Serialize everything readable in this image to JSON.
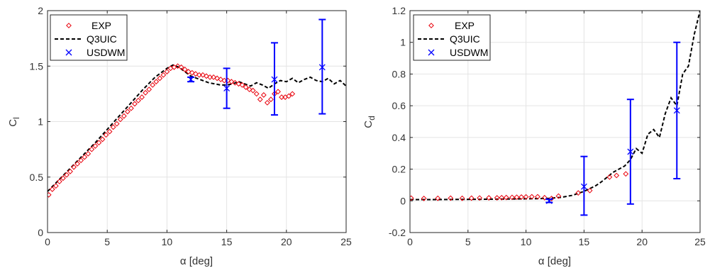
{
  "chart_data": [
    {
      "type": "line",
      "xlabel": "α [deg]",
      "ylabel": "C",
      "ylabel_subscript": "l",
      "xlim": [
        0,
        25
      ],
      "ylim": [
        0,
        2
      ],
      "xticks": [
        0,
        5,
        10,
        15,
        20,
        25
      ],
      "yticks": [
        0,
        0.5,
        1,
        1.5,
        2
      ],
      "xtick_labels": [
        "0",
        "5",
        "10",
        "15",
        "20",
        "25"
      ],
      "ytick_labels": [
        "0",
        "0.5",
        "1",
        "1.5",
        "2"
      ],
      "grid": true,
      "legend": "top-left",
      "legend_entries": [
        "EXP",
        "Q3UIC",
        "USDWM"
      ],
      "colors": {
        "exp": "#e8000b",
        "q3uic": "#000000",
        "usdwm": "#0000ff"
      },
      "series": [
        {
          "name": "EXP",
          "style": "red-diamond-markers",
          "x": [
            0.1,
            0.4,
            0.7,
            1.0,
            1.3,
            1.6,
            1.9,
            2.2,
            2.5,
            2.8,
            3.1,
            3.4,
            3.7,
            4.0,
            4.3,
            4.6,
            4.9,
            5.2,
            5.5,
            5.8,
            6.1,
            6.4,
            6.7,
            7.0,
            7.3,
            7.6,
            7.9,
            8.2,
            8.5,
            8.8,
            9.1,
            9.4,
            9.7,
            10.0,
            10.3,
            10.6,
            10.9,
            11.2,
            11.5,
            11.8,
            12.1,
            12.4,
            12.7,
            13.0,
            13.3,
            13.6,
            13.9,
            14.2,
            14.5,
            14.8,
            15.1,
            15.4,
            15.7,
            16.0,
            16.3,
            16.6,
            16.9,
            17.2,
            17.5,
            17.8,
            18.1,
            18.4,
            18.7,
            19.0,
            19.3,
            19.6,
            19.9,
            20.2,
            20.5
          ],
          "y": [
            0.34,
            0.39,
            0.42,
            0.46,
            0.49,
            0.52,
            0.55,
            0.59,
            0.62,
            0.65,
            0.68,
            0.71,
            0.75,
            0.78,
            0.81,
            0.84,
            0.88,
            0.91,
            0.95,
            0.98,
            1.02,
            1.05,
            1.09,
            1.12,
            1.16,
            1.19,
            1.22,
            1.26,
            1.29,
            1.33,
            1.36,
            1.39,
            1.42,
            1.45,
            1.48,
            1.49,
            1.5,
            1.49,
            1.47,
            1.45,
            1.44,
            1.43,
            1.42,
            1.42,
            1.41,
            1.4,
            1.4,
            1.39,
            1.38,
            1.37,
            1.37,
            1.36,
            1.35,
            1.34,
            1.33,
            1.31,
            1.29,
            1.28,
            1.25,
            1.2,
            1.24,
            1.17,
            1.2,
            1.25,
            1.27,
            1.22,
            1.22,
            1.23,
            1.25
          ]
        },
        {
          "name": "Q3UIC",
          "style": "black-dashed-line",
          "x": [
            0,
            1,
            2,
            3,
            4,
            5,
            6,
            7,
            8,
            9,
            10,
            10.5,
            11,
            11.5,
            12,
            12.5,
            13,
            13.5,
            14,
            14.5,
            15,
            15.5,
            16,
            16.5,
            17,
            17.5,
            18,
            18.5,
            19,
            19.5,
            20,
            20.5,
            21,
            21.5,
            22,
            22.5,
            23,
            23.5,
            24,
            24.5,
            25
          ],
          "y": [
            0.37,
            0.48,
            0.59,
            0.7,
            0.81,
            0.93,
            1.05,
            1.17,
            1.29,
            1.4,
            1.48,
            1.51,
            1.49,
            1.45,
            1.41,
            1.39,
            1.37,
            1.35,
            1.34,
            1.33,
            1.33,
            1.34,
            1.36,
            1.34,
            1.32,
            1.35,
            1.33,
            1.3,
            1.34,
            1.37,
            1.36,
            1.39,
            1.35,
            1.38,
            1.4,
            1.37,
            1.36,
            1.39,
            1.34,
            1.37,
            1.32
          ]
        },
        {
          "name": "USDWM",
          "style": "blue-x-markers-with-errorbars",
          "x": [
            12,
            15,
            19,
            23
          ],
          "y": [
            1.38,
            1.3,
            1.38,
            1.49
          ],
          "err_low": [
            1.36,
            1.12,
            1.06,
            1.07
          ],
          "err_high": [
            1.4,
            1.48,
            1.71,
            1.92
          ]
        }
      ]
    },
    {
      "type": "line",
      "xlabel": "α [deg]",
      "ylabel": "C",
      "ylabel_subscript": "d",
      "xlim": [
        0,
        25
      ],
      "ylim": [
        -0.2,
        1.2
      ],
      "xticks": [
        0,
        5,
        10,
        15,
        20,
        25
      ],
      "yticks": [
        -0.2,
        0,
        0.2,
        0.4,
        0.6,
        0.8,
        1,
        1.2
      ],
      "xtick_labels": [
        "0",
        "5",
        "10",
        "15",
        "20",
        "25"
      ],
      "ytick_labels": [
        "-0.2",
        "0",
        "0.2",
        "0.4",
        "0.6",
        "0.8",
        "1",
        "1.2"
      ],
      "grid": true,
      "legend": "top-left",
      "legend_entries": [
        "EXP",
        "Q3UIC",
        "USDWM"
      ],
      "colors": {
        "exp": "#e8000b",
        "q3uic": "#000000",
        "usdwm": "#0000ff"
      },
      "series": [
        {
          "name": "EXP",
          "style": "red-diamond-markers",
          "x": [
            0.1,
            1.2,
            2.4,
            3.5,
            4.5,
            5.3,
            6.0,
            6.8,
            7.5,
            7.9,
            8.3,
            8.8,
            9.2,
            9.6,
            10.0,
            10.5,
            11.0,
            11.6,
            12.2,
            12.8,
            14.5,
            15.5,
            17.2,
            17.8,
            18.6
          ],
          "y": [
            0.017,
            0.015,
            0.016,
            0.017,
            0.016,
            0.017,
            0.018,
            0.019,
            0.019,
            0.02,
            0.021,
            0.022,
            0.023,
            0.024,
            0.025,
            0.026,
            0.026,
            0.02,
            0.015,
            0.03,
            0.05,
            0.065,
            0.15,
            0.16,
            0.17
          ]
        },
        {
          "name": "Q3UIC",
          "style": "black-dashed-line",
          "x": [
            0,
            2,
            4,
            6,
            8,
            10,
            11,
            12,
            13,
            14,
            15,
            16,
            16.5,
            17,
            17.5,
            18,
            18.5,
            19,
            19.5,
            20,
            20.5,
            21,
            21.5,
            22,
            22.5,
            23,
            23.5,
            24,
            24.5,
            25
          ],
          "y": [
            0.008,
            0.008,
            0.009,
            0.01,
            0.011,
            0.013,
            0.014,
            0.016,
            0.022,
            0.035,
            0.06,
            0.095,
            0.12,
            0.15,
            0.18,
            0.2,
            0.22,
            0.26,
            0.33,
            0.3,
            0.42,
            0.45,
            0.4,
            0.55,
            0.65,
            0.6,
            0.8,
            0.85,
            1.05,
            1.2
          ]
        },
        {
          "name": "USDWM",
          "style": "blue-x-markers-with-errorbars",
          "x": [
            12,
            15,
            19,
            23
          ],
          "y": [
            0.0,
            0.09,
            0.31,
            0.57
          ],
          "err_low": [
            -0.01,
            -0.09,
            -0.02,
            0.14
          ],
          "err_high": [
            0.01,
            0.28,
            0.64,
            1.0
          ]
        }
      ]
    }
  ]
}
